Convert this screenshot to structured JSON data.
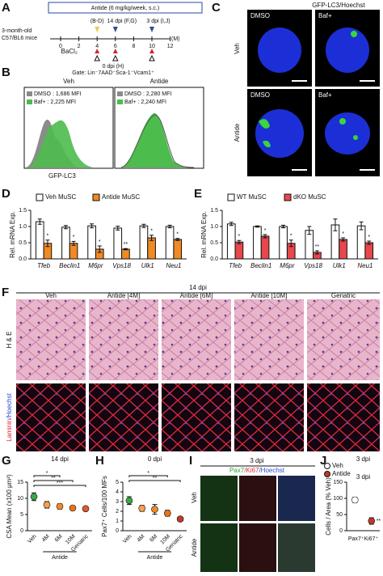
{
  "letters": [
    "A",
    "B",
    "C",
    "D",
    "E",
    "F",
    "G",
    "H",
    "I",
    "J"
  ],
  "panel_A": {
    "treatment": "Antide (6 mg/kg/week, s.c.)",
    "mice": [
      "3-month-old",
      "C57/BL6 mice"
    ],
    "timepoints": [
      "(B-D)",
      "14 dpi (F,G)",
      "3 dpi (I,J)"
    ],
    "injury": "BaCl₂",
    "injury_time": "0 dpi (H)",
    "axis": [
      "0",
      "2",
      "4",
      "6",
      "8",
      "10",
      "12"
    ],
    "unit": "(M)"
  },
  "panel_B": {
    "gate": "Gate: Lin⁻7AAD⁻Sca-1⁻Vcam1⁺",
    "groups": [
      "Veh",
      "Antide"
    ],
    "legends": [
      [
        "DMSO : 1,686 MFI",
        "Baf+ : 2,225 MFI"
      ],
      [
        "DMSO : 2,280 MFI",
        "Baf+ : 2,240 MFI"
      ]
    ],
    "x_label": "GFP-LC3"
  },
  "panel_C": {
    "stain": [
      "GFP-LC3",
      "/Hoechst"
    ],
    "columns": [
      "DMSO",
      "Baf+"
    ],
    "rows": [
      "Veh",
      "Antide"
    ]
  },
  "panel_F": {
    "title": "14 dpi",
    "columns": [
      "Veh",
      "Antide [4M]",
      "Antide [6M]",
      "Antide [10M]",
      "Geriatric"
    ],
    "rows": [
      "H & E"
    ],
    "row2": [
      "Laminin",
      "/Hoechst"
    ]
  },
  "panel_I": {
    "title": "3 dpi",
    "stain": [
      "Pax7",
      "/Ki67",
      "/Hoechst"
    ],
    "rows": [
      "Veh",
      "Antide"
    ]
  },
  "chart_data": [
    {
      "type": "bar",
      "y_label": "Rel. mRNA Exp.",
      "categories": [
        "Tfeb",
        "Beclin1",
        "M6pr",
        "Vps18",
        "Ulk1",
        "Neu1"
      ],
      "series": [
        {
          "name": "Veh MuSC",
          "color": "#ffffff",
          "values": [
            1.15,
            0.98,
            1.02,
            0.95,
            1.02,
            1.0
          ],
          "errors": [
            0.08,
            0.05,
            0.06,
            0.06,
            0.05,
            0.04
          ]
        },
        {
          "name": "Antide MuSC",
          "color": "#f08a24",
          "values": [
            0.48,
            0.48,
            0.3,
            0.3,
            0.65,
            0.6
          ],
          "errors": [
            0.1,
            0.06,
            0.1,
            0.02,
            0.08,
            0.03
          ]
        }
      ],
      "significance": [
        "*",
        "*",
        "*",
        "**",
        "*",
        "*"
      ],
      "ylim": [
        0,
        1.5
      ],
      "yticks": [
        {
          "value": 0,
          "label": "0.0"
        },
        {
          "value": 0.5,
          "label": "0.5"
        },
        {
          "value": 1,
          "label": "1.0"
        },
        {
          "value": 1.5,
          "label": "1.5"
        }
      ]
    },
    {
      "type": "bar",
      "y_label": "Rel. mRNA Exp.",
      "categories": [
        "Tfeb",
        "Beclin1",
        "M6pr",
        "Vps18",
        "Ulk1",
        "Neu1"
      ],
      "series": [
        {
          "name": "WT MuSC",
          "color": "#ffffff",
          "values": [
            1.08,
            1.0,
            1.0,
            0.88,
            1.05,
            1.02
          ],
          "errors": [
            0.05,
            0.02,
            0.04,
            0.12,
            0.18,
            0.12
          ]
        },
        {
          "name": "dKO MuSC",
          "color": "#e8474c",
          "values": [
            0.52,
            0.7,
            0.48,
            0.2,
            0.6,
            0.5
          ],
          "errors": [
            0.05,
            0.05,
            0.1,
            0.05,
            0.05,
            0.05
          ]
        }
      ],
      "significance": [
        "*",
        "*",
        "*",
        "**",
        "*",
        "*"
      ],
      "ylim": [
        0,
        1.5
      ],
      "yticks": [
        {
          "value": 0,
          "label": "0.0"
        },
        {
          "value": 0.5,
          "label": "0.5"
        },
        {
          "value": 1,
          "label": "1.0"
        },
        {
          "value": 1.5,
          "label": "1.5"
        }
      ]
    },
    {
      "type": "dot",
      "title": "14 dpi",
      "y_label": "CSA Mean (x100 μm²)",
      "categories": [
        "Veh",
        "4M",
        "6M",
        "10M",
        "Geriatric"
      ],
      "group_label": "Antide",
      "values": [
        10.5,
        8,
        7.5,
        7,
        6.8
      ],
      "errors": [
        1.2,
        1,
        0.8,
        0.7,
        0.6
      ],
      "colors": [
        "#3aa845",
        "#f6a04d",
        "#f08a24",
        "#e8731c",
        "#e05a2a"
      ],
      "significance": [
        "*",
        "**",
        "***"
      ],
      "ylim": [
        0,
        15
      ],
      "yticks": [
        0,
        5,
        10,
        15
      ]
    },
    {
      "type": "dot",
      "title": "0 dpi",
      "y_label": "Pax7⁺ Cells/100 MFs",
      "categories": [
        "Veh",
        "4M",
        "6M",
        "10M",
        "Geriatric"
      ],
      "group_label": "Antide",
      "values": [
        3.1,
        2.3,
        2.2,
        1.8,
        1.2
      ],
      "errors": [
        0.4,
        0.3,
        0.5,
        0.3,
        0.2
      ],
      "colors": [
        "#3aa845",
        "#f6a04d",
        "#f08a24",
        "#e8731c",
        "#c0392b"
      ],
      "significance": [
        "*",
        "**"
      ],
      "ylim": [
        0,
        5
      ],
      "yticks": [
        0,
        1,
        2,
        3,
        4,
        5
      ]
    },
    {
      "type": "dot",
      "title": "3 dpi",
      "y_label": "Cells / Area (% Veh)",
      "x_label": "Pax7⁺Ki67⁺",
      "categories": [
        "Veh",
        "Antide"
      ],
      "values": [
        95,
        30
      ],
      "errors": [
        8,
        10
      ],
      "colors": [
        "#ffffff",
        "#c0392b"
      ],
      "significance": [
        "**"
      ],
      "ylim": [
        0,
        150
      ],
      "yticks": [
        0,
        50,
        100,
        150
      ]
    }
  ]
}
